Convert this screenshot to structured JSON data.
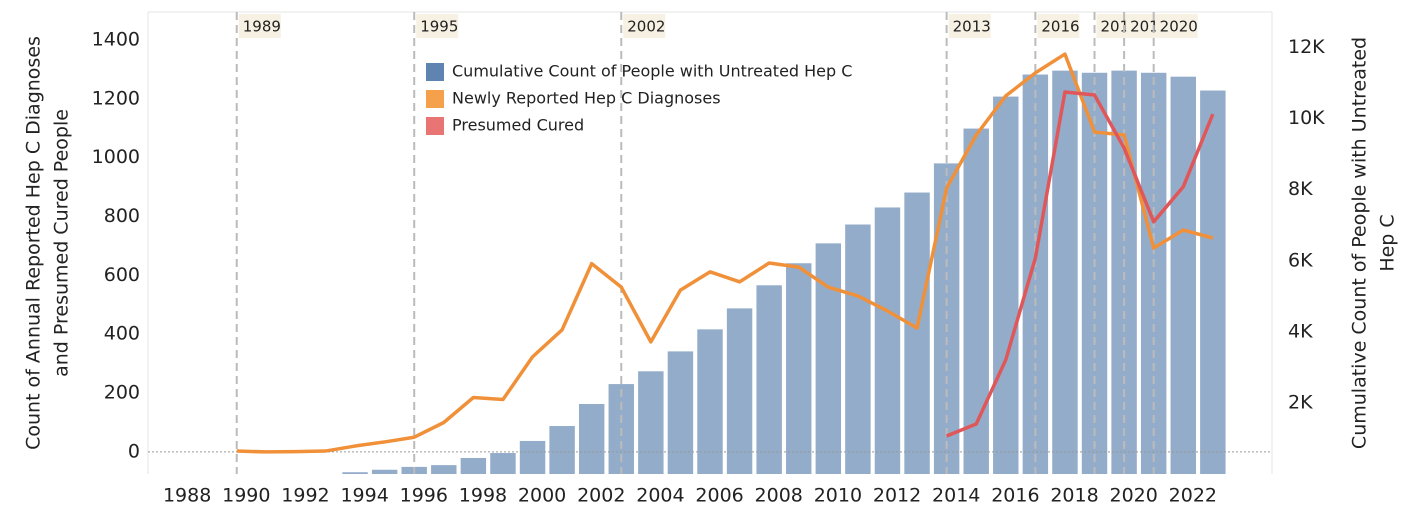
{
  "chart_data": {
    "type": "bar-line",
    "y_label": [
      "Count of Annual Reported Hep C Diagnoses",
      "and Presumed Cured People"
    ],
    "y2_label": [
      "Cumulative Count of People with  Untreated",
      "Hep C"
    ],
    "xlim": [
      1986,
      2024
    ],
    "xticks": [
      1988,
      1990,
      1992,
      1994,
      1996,
      1998,
      2000,
      2002,
      2004,
      2006,
      2008,
      2010,
      2012,
      2014,
      2016,
      2018,
      2020,
      2022
    ],
    "ylim": [
      -75,
      1495
    ],
    "yticks": [
      0,
      200,
      400,
      600,
      800,
      1000,
      1200,
      1400
    ],
    "y2lim": [
      0,
      13000
    ],
    "y2ticks": [
      {
        "value": 2000,
        "label": "2K"
      },
      {
        "value": 4000,
        "label": "4K"
      },
      {
        "value": 6000,
        "label": "6K"
      },
      {
        "value": 8000,
        "label": "8K"
      },
      {
        "value": 10000,
        "label": "10K"
      },
      {
        "value": 12000,
        "label": "12K"
      }
    ],
    "reference_lines": [
      1989,
      1995,
      2002,
      2013,
      2016,
      2018,
      2019,
      2020
    ],
    "series": [
      {
        "name": "Cumulative Count of People with Untreated Hep C",
        "kind": "bar",
        "axis": "y2",
        "color": "#93acca",
        "legend_color": "#5f84b2",
        "x": [
          1993,
          1994,
          1995,
          1996,
          1997,
          1998,
          1999,
          2000,
          2001,
          2002,
          2003,
          2004,
          2005,
          2006,
          2007,
          2008,
          2009,
          2010,
          2011,
          2012,
          2013,
          2014,
          2015,
          2016,
          2017,
          2018,
          2019,
          2020,
          2021,
          2022
        ],
        "values": [
          50,
          120,
          200,
          250,
          450,
          590,
          930,
          1350,
          1970,
          2530,
          2890,
          3450,
          4070,
          4660,
          5310,
          5930,
          6490,
          7020,
          7500,
          7920,
          8740,
          9720,
          10620,
          11240,
          11350,
          11290,
          11350,
          11290,
          11180,
          10790
        ]
      },
      {
        "name": "Newly Reported Hep C Diagnoses",
        "kind": "line",
        "color": "#f0913a",
        "legend_color": "#f5a04a",
        "x": [
          1989,
          1990,
          1991,
          1992,
          1993,
          1994,
          1995,
          1996,
          1997,
          1998,
          1999,
          2000,
          2001,
          2002,
          2003,
          2004,
          2005,
          2006,
          2007,
          2008,
          2009,
          2010,
          2011,
          2012,
          2013,
          2014,
          2015,
          2016,
          2017,
          2018,
          2019,
          2020,
          2021,
          2022
        ],
        "values": [
          3,
          0,
          1,
          3,
          20,
          34,
          50,
          100,
          185,
          178,
          323,
          415,
          640,
          560,
          374,
          550,
          612,
          578,
          642,
          628,
          560,
          530,
          479,
          421,
          897,
          1077,
          1210,
          1288,
          1352,
          1087,
          1077,
          693,
          754,
          727
        ]
      },
      {
        "name": "Presumed Cured",
        "kind": "line",
        "color": "#e0575a",
        "legend_color": "#e87474",
        "x": [
          2013,
          2014,
          2015,
          2016,
          2017,
          2018,
          2019,
          2020,
          2021,
          2022
        ],
        "values": [
          54,
          95,
          313,
          659,
          1223,
          1213,
          1033,
          782,
          901,
          1148
        ]
      }
    ]
  }
}
